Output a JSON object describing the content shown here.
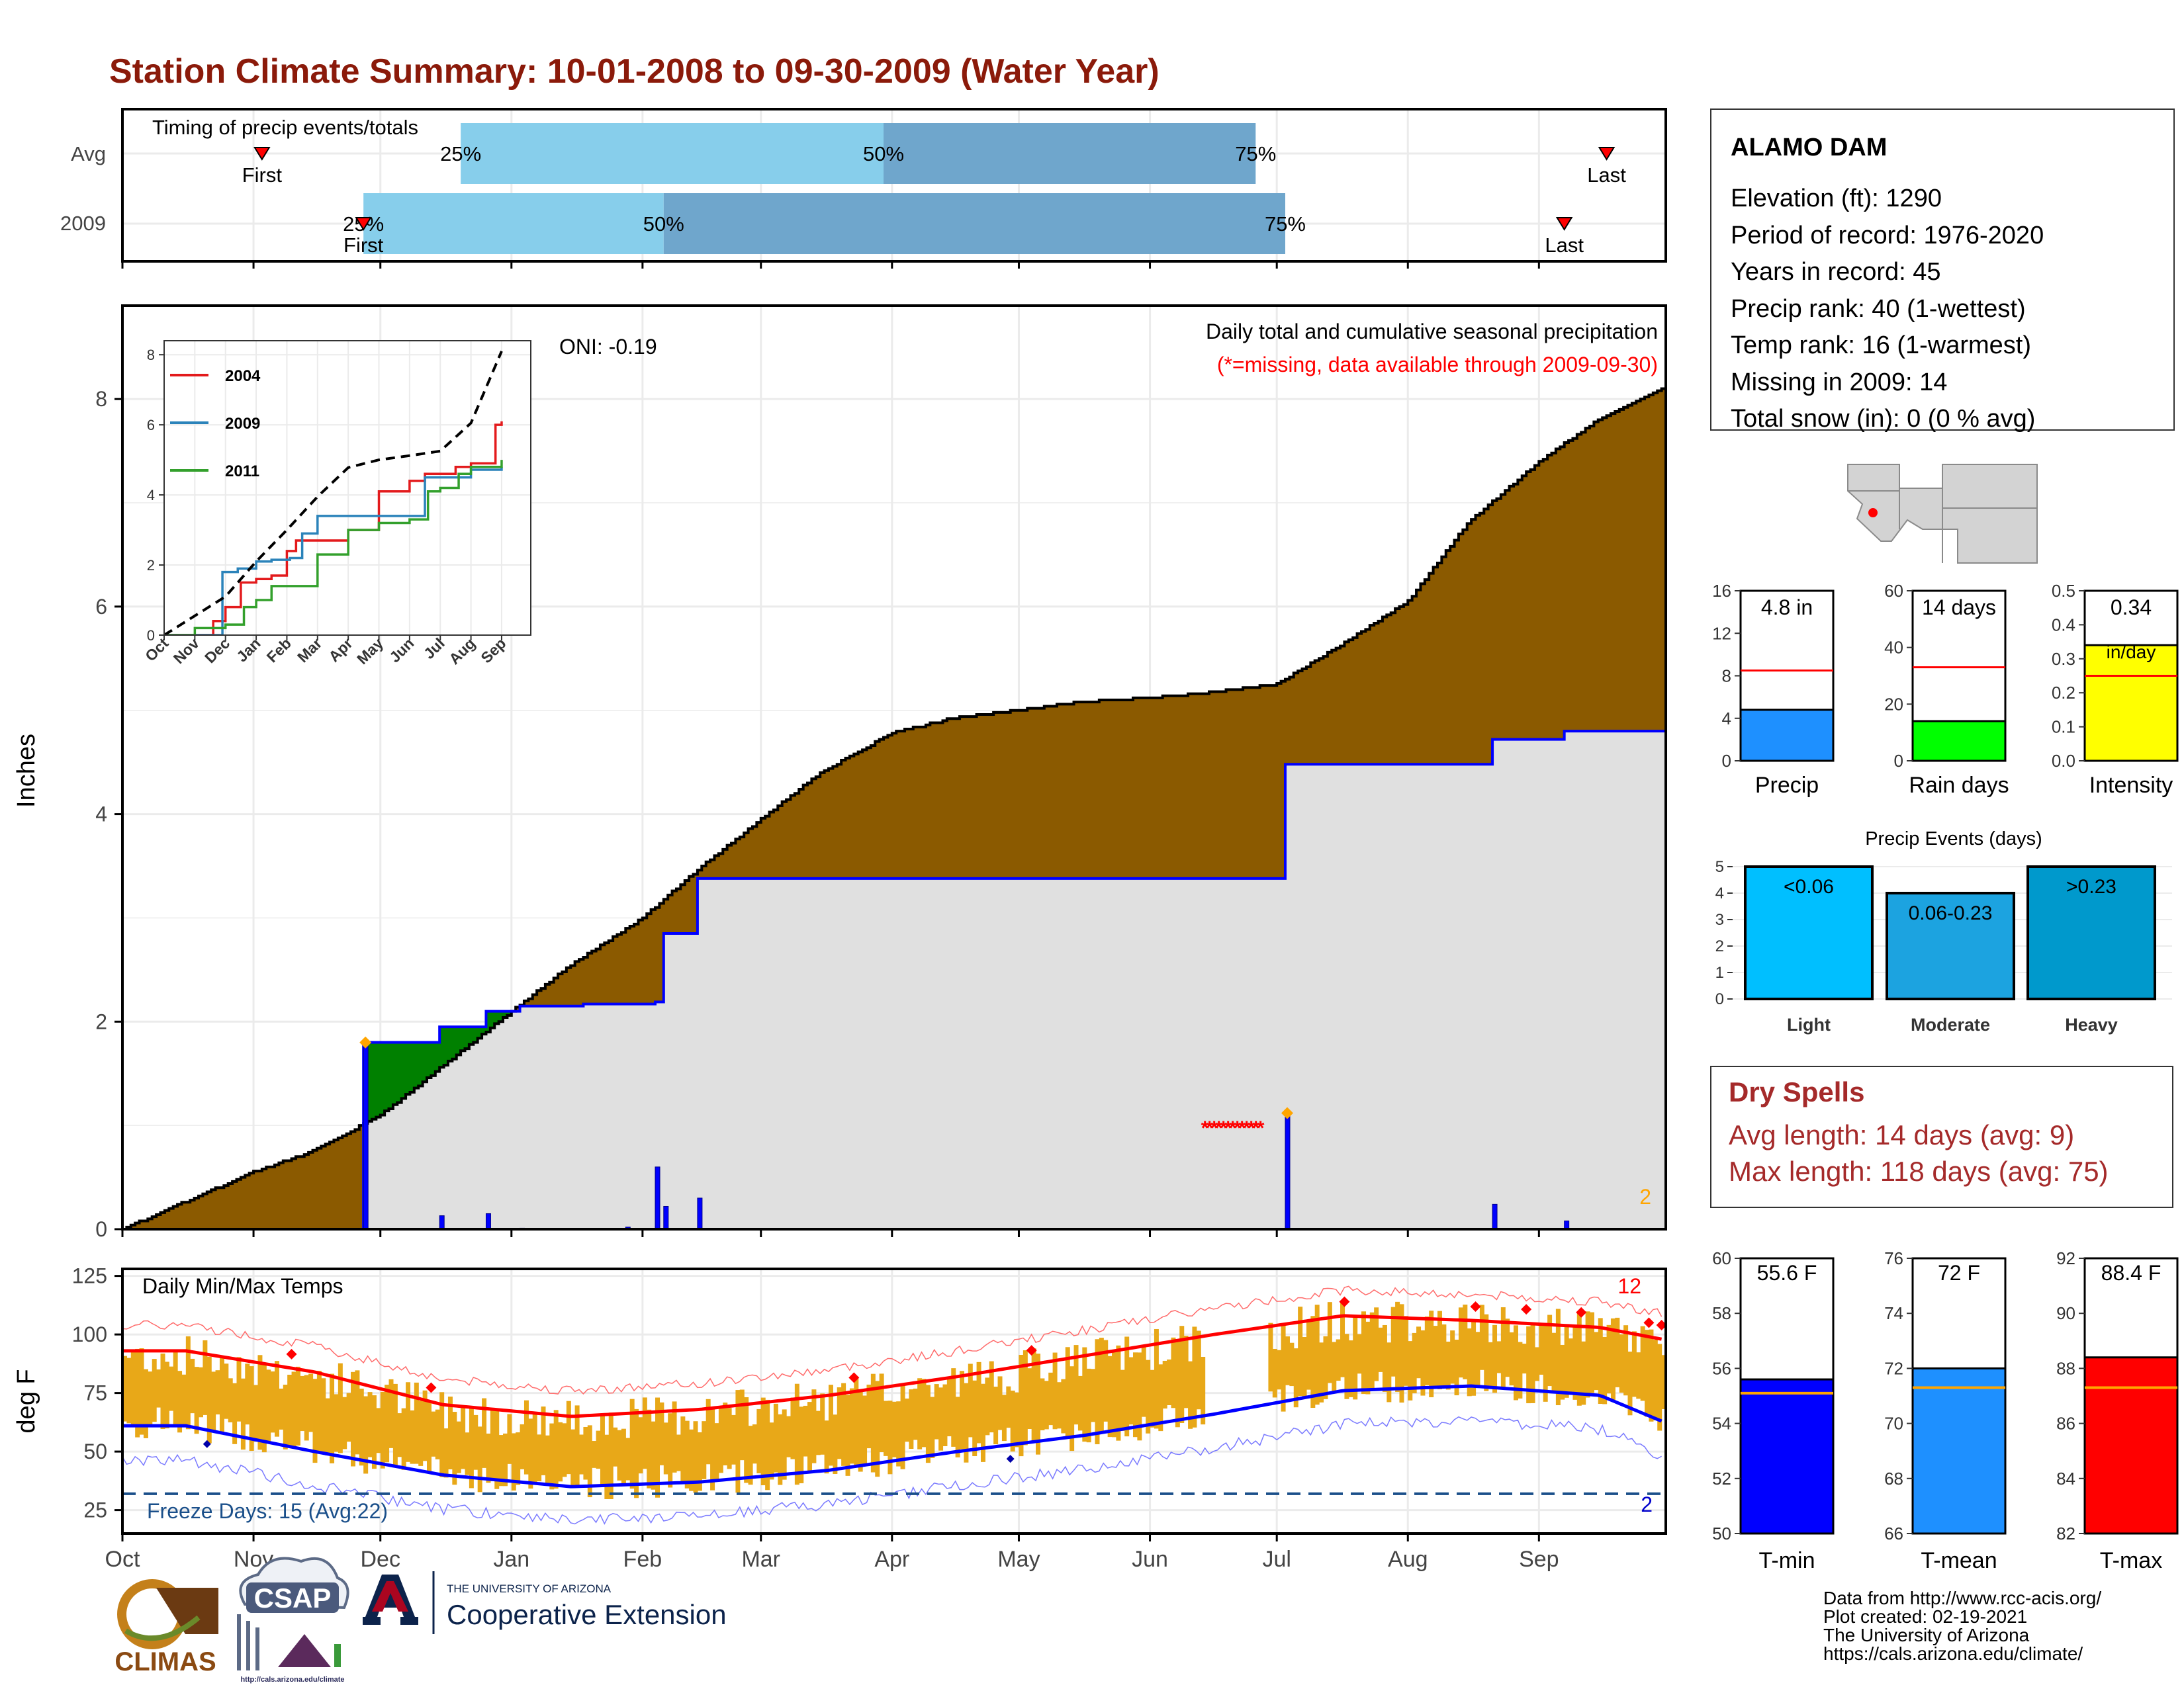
{
  "title": "Station Climate Summary: 10-01-2008 to 09-30-2009 (Water Year)",
  "colors": {
    "title": "#8b1a0a",
    "precip_fill": "#8b5a00",
    "avg_fill": "#e0e0e0",
    "ahead_fill": "#008000",
    "obs_line": "#0000ff",
    "bar_light": "#87ceeb",
    "bar_dark": "#6fa6cc",
    "missing": "#ff0000",
    "highlight": "#ffa500",
    "temp_bar": "#e8a818",
    "tmax_avg": "#ff0000",
    "tmin_avg": "#0000ff",
    "freeze_line": "#1a4f8a",
    "dry_text": "#a52a2a"
  },
  "timing": {
    "label": "Timing of precip events/totals",
    "rows": [
      {
        "name": "Avg",
        "first": "First",
        "last": "Last",
        "p25": "25%",
        "p50": "50%",
        "p75": "75%",
        "first_date": "2008-11-03",
        "last_date": "2009-09-17",
        "p25_date": "2008-12-20",
        "p50_date": "2009-03-30",
        "p75_date": "2009-06-26"
      },
      {
        "name": "2009",
        "first": "First",
        "last": "Last",
        "p25": "25%",
        "p50": "50%",
        "p75": "75%",
        "first_date": "2008-11-27",
        "last_date": "2009-09-07",
        "p25_date": "2008-11-27",
        "p50_date": "2009-02-06",
        "p75_date": "2009-07-03"
      }
    ]
  },
  "main": {
    "ylabel": "Inches",
    "oni": "ONI: -0.19",
    "caption": "Daily total and cumulative seasonal precipitation",
    "missing_note": "(*=missing, data available through 2009-09-30)",
    "corner_count": "2",
    "yticks": [
      "0",
      "2",
      "4",
      "6",
      "8"
    ]
  },
  "inset": {
    "legend": [
      "2004",
      "2009",
      "2011"
    ],
    "yticks": [
      "0",
      "2",
      "4",
      "6",
      "8"
    ],
    "xticks": [
      "Oct",
      "Nov",
      "Dec",
      "Jan",
      "Feb",
      "Mar",
      "Apr",
      "May",
      "Jun",
      "Jul",
      "Aug",
      "Sep"
    ]
  },
  "temps": {
    "ylabel": "deg F",
    "label": "Daily Min/Max Temps",
    "freeze": "Freeze Days: 15 (Avg:22)",
    "hot_count": "12",
    "cold_count": "2",
    "yticks": [
      "25",
      "50",
      "75",
      "100",
      "125"
    ]
  },
  "months": [
    "Oct",
    "Nov",
    "Dec",
    "Jan",
    "Feb",
    "Mar",
    "Apr",
    "May",
    "Jun",
    "Jul",
    "Aug",
    "Sep"
  ],
  "station": {
    "name": "ALAMO DAM",
    "lines": [
      "Elevation (ft): 1290",
      "Period of record: 1976-2020",
      "Years in record: 45",
      "Precip rank: 40 (1-wettest)",
      "Temp rank: 16 (1-warmest)",
      "Missing in 2009: 14",
      "Total snow (in): 0 (0 % avg)"
    ]
  },
  "mini_bars": [
    {
      "name": "Precip",
      "value": 4.8,
      "avg": 8.5,
      "label": "4.8 in",
      "ymax": 16,
      "ticks": [
        "0",
        "4",
        "8",
        "12",
        "16"
      ],
      "color": "#1e90ff"
    },
    {
      "name": "Rain days",
      "value": 14,
      "avg": 33,
      "label": "14 days",
      "ymax": 60,
      "ticks": [
        "0",
        "20",
        "40",
        "60"
      ],
      "color": "#00ff00"
    },
    {
      "name": "Intensity",
      "value": 0.34,
      "avg": 0.25,
      "label": "0.34",
      "label2": "in/day",
      "ymax": 0.5,
      "ticks": [
        "0.0",
        "0.1",
        "0.2",
        "0.3",
        "0.4",
        "0.5"
      ],
      "color": "#ffff00"
    }
  ],
  "events": {
    "title": "Precip Events (days)",
    "ticks": [
      "0",
      "1",
      "2",
      "3",
      "4",
      "5"
    ],
    "bars": [
      {
        "cat": "Light",
        "label": "<0.06",
        "value": 5,
        "color": "#00bfff"
      },
      {
        "cat": "Moderate",
        "label": "0.06-0.23",
        "value": 4,
        "color": "#1ca3e0"
      },
      {
        "cat": "Heavy",
        "label": ">0.23",
        "value": 5,
        "color": "#0099cc"
      }
    ]
  },
  "dry": {
    "title": "Dry Spells",
    "avg": "Avg length: 14 days (avg: 9)",
    "max": "Max length: 118 days (avg: 75)"
  },
  "temp_bars": [
    {
      "name": "T-min",
      "value": 55.6,
      "avg": 55.1,
      "label": "55.6 F",
      "ymin": 50,
      "ymax": 60,
      "ticks": [
        "50",
        "52",
        "54",
        "56",
        "58",
        "60"
      ],
      "color": "#0000ff"
    },
    {
      "name": "T-mean",
      "value": 72,
      "avg": 71.3,
      "label": "72 F",
      "ymin": 66,
      "ymax": 76,
      "ticks": [
        "66",
        "68",
        "70",
        "72",
        "74",
        "76"
      ],
      "color": "#1e90ff"
    },
    {
      "name": "T-max",
      "value": 88.4,
      "avg": 87.3,
      "label": "88.4 F",
      "ymin": 82,
      "ymax": 92,
      "ticks": [
        "82",
        "84",
        "86",
        "88",
        "90",
        "92"
      ],
      "color": "#ff0000"
    }
  ],
  "footer": {
    "lines": [
      "Data from http://www.rcc-acis.org/",
      "Plot created: 02-19-2021",
      "The University of Arizona",
      "https://cals.arizona.edu/climate/"
    ],
    "logo1": "CLIMAS",
    "logo2": "CSAP",
    "logo3_small": "THE UNIVERSITY OF ARIZONA",
    "logo3_big": "Cooperative Extension",
    "logo2_url": "http://cals.arizona.edu/climate"
  },
  "chart_data": [
    {
      "type": "area",
      "title": "Daily total and cumulative seasonal precipitation",
      "ylabel": "Inches",
      "ylim": [
        0,
        8.9
      ],
      "cumulative_avg": {
        "x": [
          "2008-10-01",
          "2008-10-15",
          "2008-11-01",
          "2008-11-15",
          "2008-12-01",
          "2008-12-15",
          "2009-01-01",
          "2009-01-15",
          "2009-02-01",
          "2009-02-15",
          "2009-03-01",
          "2009-03-15",
          "2009-04-01",
          "2009-04-15",
          "2009-05-01",
          "2009-05-15",
          "2009-06-01",
          "2009-06-15",
          "2009-07-01",
          "2009-07-15",
          "2009-08-01",
          "2009-08-15",
          "2009-09-01",
          "2009-09-15",
          "2009-09-30"
        ],
        "y": [
          0.0,
          0.25,
          0.55,
          0.75,
          1.1,
          1.55,
          2.1,
          2.55,
          3.0,
          3.5,
          3.95,
          4.4,
          4.78,
          4.92,
          5.0,
          5.08,
          5.12,
          5.17,
          5.25,
          5.6,
          6.05,
          6.8,
          7.4,
          7.8,
          8.1
        ]
      },
      "cumulative_2009": {
        "x": [
          "2008-10-01",
          "2008-11-27",
          "2008-12-15",
          "2008-12-26",
          "2009-01-03",
          "2009-01-18",
          "2009-02-04",
          "2009-02-06",
          "2009-02-14",
          "2009-07-03",
          "2009-08-21",
          "2009-09-07",
          "2009-09-30"
        ],
        "y": [
          0.0,
          1.8,
          1.95,
          2.1,
          2.15,
          2.17,
          2.19,
          2.85,
          3.38,
          4.48,
          4.72,
          4.8,
          4.8
        ]
      },
      "daily_2009": {
        "x": [
          "2008-11-27",
          "2008-12-15",
          "2008-12-26",
          "2009-01-03",
          "2009-01-28",
          "2009-02-04",
          "2009-02-06",
          "2009-02-14",
          "2009-07-03",
          "2009-08-21",
          "2009-09-07"
        ],
        "y": [
          1.78,
          0.13,
          0.15,
          0.01,
          0.02,
          0.6,
          0.22,
          0.3,
          1.1,
          0.24,
          0.08
        ]
      },
      "missing_dates": [
        "2009-06-14",
        "2009-06-28"
      ]
    },
    {
      "type": "line",
      "title": "Inset cumulative precipitation",
      "ylim": [
        0,
        8
      ],
      "series": [
        {
          "name": "2004",
          "x": [
            0,
            1,
            1.6,
            2,
            2.5,
            3,
            3.5,
            4,
            4.3,
            5,
            6,
            7,
            7.6,
            8,
            8.5,
            9,
            9.5,
            10,
            10.8,
            11
          ],
          "y": [
            0,
            0,
            0.4,
            0.8,
            1.5,
            1.6,
            1.7,
            2.4,
            2.7,
            2.7,
            3,
            4.1,
            4.1,
            4.4,
            4.6,
            4.6,
            4.8,
            4.9,
            6,
            6.1
          ]
        },
        {
          "name": "2009",
          "x": [
            0,
            1.8,
            1.9,
            2.4,
            3,
            3.5,
            4.1,
            4.5,
            5,
            6,
            7,
            8,
            8.5,
            9,
            10,
            11
          ],
          "y": [
            0,
            0,
            1.8,
            1.9,
            2.1,
            2.15,
            2.2,
            2.9,
            3.4,
            3.4,
            3.4,
            3.4,
            4.5,
            4.5,
            4.72,
            4.8
          ]
        },
        {
          "name": "2011",
          "x": [
            0,
            1,
            2,
            2.6,
            3,
            3.5,
            4,
            4.3,
            5,
            6,
            7,
            8,
            8.6,
            9,
            9.6,
            10,
            11
          ],
          "y": [
            0,
            0.2,
            0.3,
            0.8,
            1.0,
            1.4,
            1.4,
            1.4,
            2.3,
            3,
            3.2,
            3.3,
            4.1,
            4.2,
            4.6,
            4.8,
            5.0
          ]
        },
        {
          "name": "avg",
          "x": [
            0,
            1,
            2,
            3,
            4,
            5,
            6,
            7,
            8,
            9,
            10,
            11
          ],
          "y": [
            0,
            0.55,
            1.1,
            2.1,
            3.0,
            3.95,
            4.78,
            5.0,
            5.12,
            5.25,
            6.05,
            8.1
          ]
        }
      ]
    },
    {
      "type": "bar",
      "title": "Daily Min/Max Temps",
      "ylabel": "deg F",
      "ylim": [
        15,
        128
      ],
      "avg_tmax": {
        "x": [
          "Oct",
          "Nov",
          "Dec",
          "Jan",
          "Feb",
          "Mar",
          "Apr",
          "May",
          "Jun",
          "Jul",
          "Aug",
          "Sep",
          "Sep-end"
        ],
        "y": [
          93,
          84,
          70,
          65,
          68,
          74,
          82,
          91,
          100,
          108,
          106,
          103,
          98
        ]
      },
      "avg_tmin": {
        "x": [
          "Oct",
          "Nov",
          "Dec",
          "Jan",
          "Feb",
          "Mar",
          "Apr",
          "May",
          "Jun",
          "Jul",
          "Aug",
          "Sep",
          "Sep-end"
        ],
        "y": [
          61,
          50,
          40,
          35,
          37,
          42,
          50,
          57,
          66,
          76,
          78,
          74,
          63
        ]
      }
    },
    {
      "type": "bar",
      "title": "Precip Events (days)",
      "categories": [
        "Light",
        "Moderate",
        "Heavy"
      ],
      "values": [
        5,
        4,
        5
      ]
    }
  ]
}
